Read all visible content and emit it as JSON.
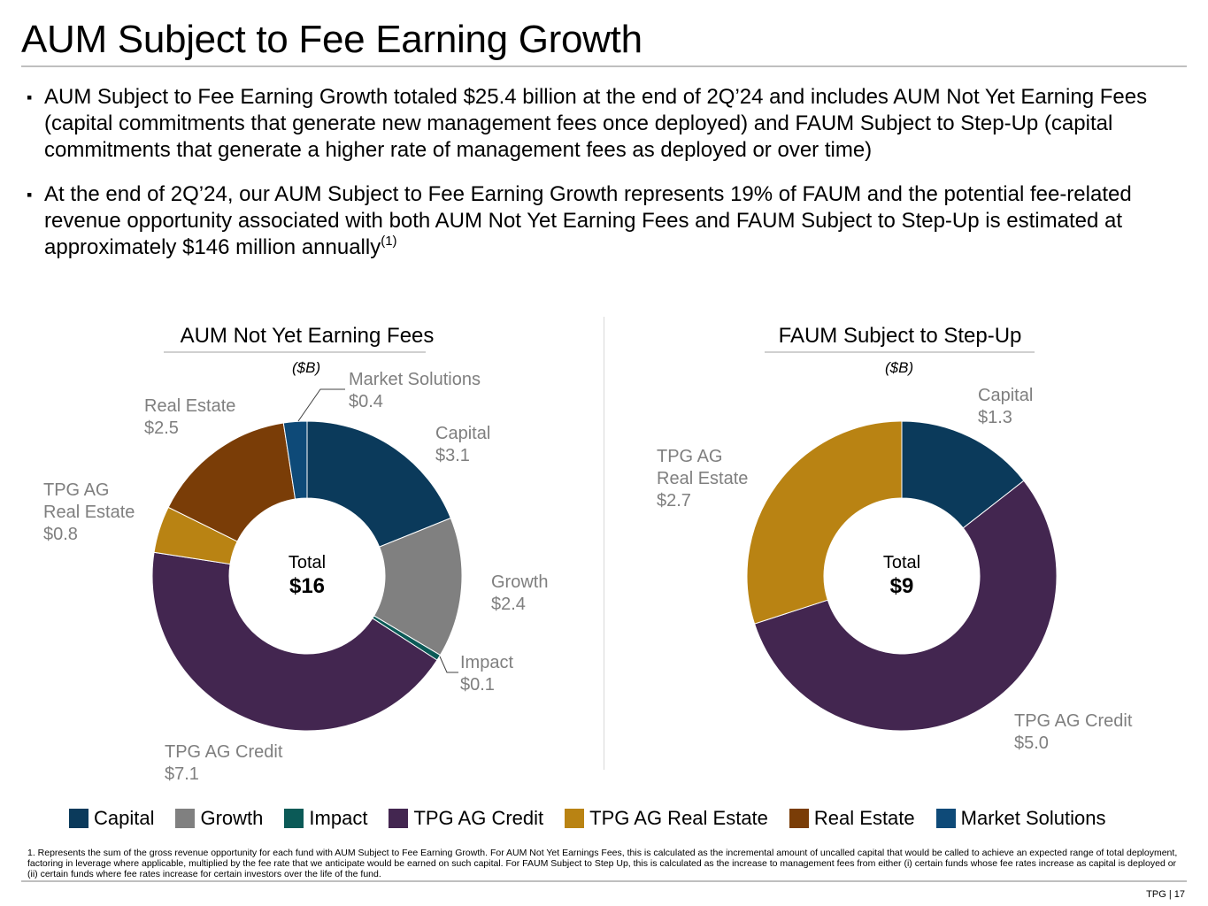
{
  "header": {
    "title": "AUM Subject to Fee Earning Growth"
  },
  "bullets": [
    {
      "mark": "▪",
      "text": "AUM Subject to Fee Earning Growth totaled $25.4 billion at the end of 2Q’24 and includes AUM Not Yet Earning Fees (capital commitments that generate new management fees once deployed) and FAUM Subject to Step-Up (capital commitments that generate a higher rate of management fees as deployed or over time)"
    },
    {
      "mark": "▪",
      "text": "At the end of 2Q’24, our AUM Subject to Fee Earning Growth represents 19% of FAUM and the potential fee-related revenue opportunity associated with both AUM Not Yet Earning Fees and FAUM Subject to Step-Up is estimated at approximately $146 million annually",
      "sup": "(1)"
    }
  ],
  "colors": {
    "Capital": "#0b3a5b",
    "Growth": "#808080",
    "Impact": "#0b5a57",
    "TPG AG Credit": "#432650",
    "TPG AG Real Estate": "#b98313",
    "Real Estate": "#7a3d07",
    "Market Solutions": "#0e4a78"
  },
  "chart_data": [
    {
      "type": "pie",
      "title": "AUM Not Yet Earning Fees",
      "unit": "($B)",
      "total_label": "Total",
      "total_value": "$16",
      "slices": [
        {
          "name": "Capital",
          "value": 3.1,
          "label": "$3.1"
        },
        {
          "name": "Growth",
          "value": 2.4,
          "label": "$2.4"
        },
        {
          "name": "Impact",
          "value": 0.1,
          "label": "$0.1"
        },
        {
          "name": "TPG AG Credit",
          "value": 7.1,
          "label": "$7.1"
        },
        {
          "name": "TPG AG Real Estate",
          "value": 0.8,
          "label": "$0.8",
          "display_lines": [
            "TPG AG",
            "Real Estate"
          ]
        },
        {
          "name": "Real Estate",
          "value": 2.5,
          "label": "$2.5"
        },
        {
          "name": "Market Solutions",
          "value": 0.4,
          "label": "$0.4"
        }
      ]
    },
    {
      "type": "pie",
      "title": "FAUM Subject to Step-Up",
      "unit": "($B)",
      "total_label": "Total",
      "total_value": "$9",
      "slices": [
        {
          "name": "Capital",
          "value": 1.3,
          "label": "$1.3"
        },
        {
          "name": "TPG AG Credit",
          "value": 5.0,
          "label": "$5.0"
        },
        {
          "name": "TPG AG Real Estate",
          "value": 2.7,
          "label": "$2.7",
          "display_lines": [
            "TPG AG",
            "Real Estate"
          ]
        }
      ]
    }
  ],
  "legend": [
    "Capital",
    "Growth",
    "Impact",
    "TPG AG Credit",
    "TPG AG Real Estate",
    "Real Estate",
    "Market Solutions"
  ],
  "footnote": "1. Represents the sum of the gross revenue opportunity for each fund with AUM Subject to Fee Earning Growth. For AUM Not Yet Earnings Fees, this is calculated as the incremental amount of uncalled capital that would be called to achieve an expected range of total deployment, factoring in leverage where applicable, multiplied by the fee rate that we anticipate would be earned on such capital. For FAUM Subject to Step Up, this is calculated as the increase to management fees from either (i) certain funds whose fee rates increase as capital is deployed or (ii) certain funds where fee rates increase for certain investors over the life of the fund.",
  "page_number": "TPG | 17"
}
